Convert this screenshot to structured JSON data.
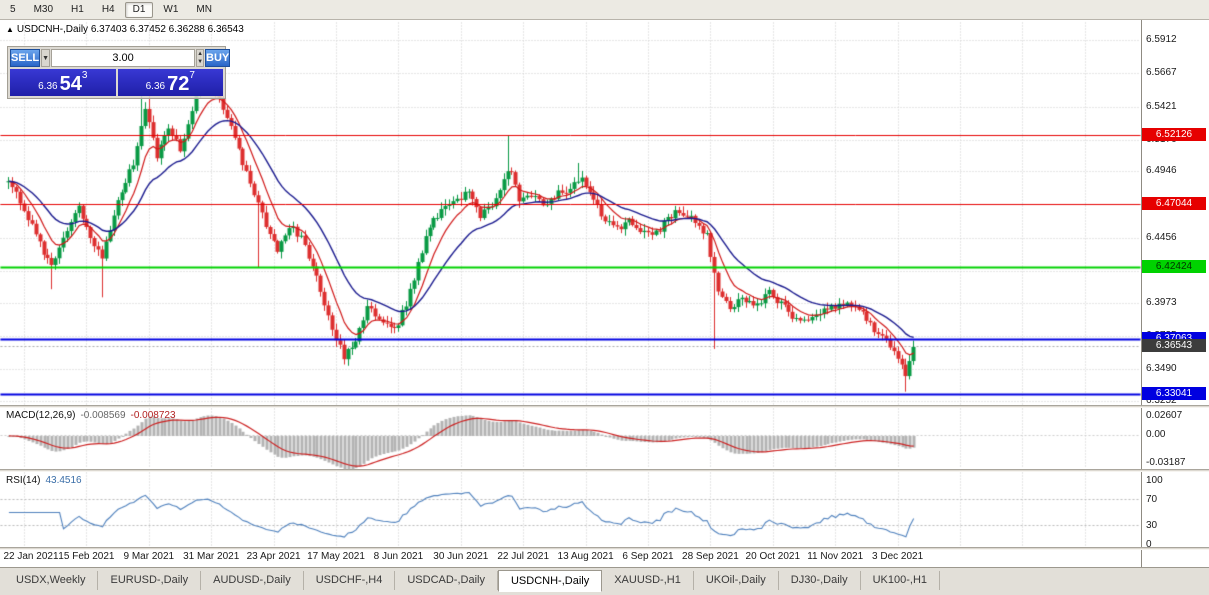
{
  "toolbar": {
    "timeframes": [
      {
        "label": "5",
        "active": false
      },
      {
        "label": "M30",
        "active": false
      },
      {
        "label": "H1",
        "active": false
      },
      {
        "label": "H4",
        "active": false
      },
      {
        "label": "D1",
        "active": true
      },
      {
        "label": "W1",
        "active": false
      },
      {
        "label": "MN",
        "active": false
      }
    ]
  },
  "chart": {
    "header_arrow": "▲",
    "header_symbol": "USDCNH-,Daily",
    "header_ohlc": "6.37403 6.37452 6.36288 6.36543"
  },
  "trade_panel": {
    "sell_label": "SELL",
    "buy_label": "BUY",
    "volume": "3.00",
    "dropdown_icon": "▼",
    "spin_up_icon": "▲",
    "spin_down_icon": "▼",
    "sell_prefix": "6.36",
    "sell_big": "54",
    "sell_sup": "3",
    "buy_prefix": "6.36",
    "buy_big": "72",
    "buy_sup": "7"
  },
  "colors": {
    "up": "#089a44",
    "down": "#dd2f2f",
    "grid": "#cdcdcd",
    "ma_fast": "#d01818",
    "ma_slow": "#1b1b8f",
    "macd_hist": "#b4b4b4",
    "macd_signal": "#cc2222",
    "rsi_line": "#4f81bd",
    "bid_line": "#aaaaaa",
    "axis_text": "#1a1a1a"
  },
  "y_axis": {
    "ticks": [
      "6.5912",
      "6.5667",
      "6.5421",
      "6.5176",
      "6.4946",
      "6.4701",
      "6.4456",
      "6.4211",
      "6.3973",
      "6.3735",
      "6.3490",
      "6.3252"
    ]
  },
  "price_lines": [
    {
      "label": "6.52126",
      "price": 6.52126,
      "color": "#e60000",
      "fg": "#ffffff",
      "width": 1
    },
    {
      "label": "6.47044",
      "price": 6.47044,
      "color": "#e60000",
      "fg": "#ffffff",
      "width": 1
    },
    {
      "label": "6.42424",
      "price": 6.42424,
      "color": "#00d200",
      "fg": "#003300",
      "width": 2
    },
    {
      "label": "6.37063",
      "price": 6.37063,
      "color": "#0000e0",
      "fg": "#ffffff",
      "width": 2
    },
    {
      "label": "6.33041",
      "price": 6.33041,
      "color": "#0000e0",
      "fg": "#ffffff",
      "width": 2
    }
  ],
  "current_price": {
    "label": "6.36543",
    "price": 6.36543,
    "bg": "#3c3c3c",
    "fg": "#ffffff"
  },
  "macd_panel": {
    "name": "MACD(12,26,9)",
    "value1": "-0.008569",
    "value2": "-0.008723",
    "axis_top": "0.02607",
    "axis_mid": "0.00",
    "axis_bottom": "-0.03187"
  },
  "rsi_panel": {
    "name": "RSI(14)",
    "value": "43.4516",
    "axis": [
      "100",
      "70",
      "30",
      "0"
    ]
  },
  "chart_data": {
    "type": "candlestick",
    "symbol": "USDCNH-",
    "timeframe": "Daily",
    "ohlc": {
      "open": 6.37403,
      "high": 6.37452,
      "low": 6.36288,
      "close": 6.36543
    },
    "y_range": [
      6.3237,
      6.6045
    ],
    "candle_count": 233,
    "x_labels": [
      "22 Jan 2021",
      "15 Feb 2021",
      "9 Mar 2021",
      "31 Mar 2021",
      "23 Apr 2021",
      "17 May 2021",
      "8 Jun 2021",
      "30 Jun 2021",
      "22 Jul 2021",
      "13 Aug 2021",
      "6 Sep 2021",
      "28 Sep 2021",
      "20 Oct 2021",
      "11 Nov 2021",
      "3 Dec 2021"
    ],
    "close_anchors": [
      [
        0,
        6.487
      ],
      [
        4,
        6.468
      ],
      [
        8,
        6.441
      ],
      [
        11,
        6.424
      ],
      [
        14,
        6.447
      ],
      [
        18,
        6.469
      ],
      [
        21,
        6.446
      ],
      [
        24,
        6.432
      ],
      [
        28,
        6.474
      ],
      [
        32,
        6.501
      ],
      [
        35,
        6.543
      ],
      [
        38,
        6.506
      ],
      [
        41,
        6.527
      ],
      [
        44,
        6.511
      ],
      [
        48,
        6.551
      ],
      [
        51,
        6.562
      ],
      [
        54,
        6.546
      ],
      [
        57,
        6.526
      ],
      [
        60,
        6.501
      ],
      [
        63,
        6.479
      ],
      [
        66,
        6.456
      ],
      [
        69,
        6.438
      ],
      [
        72,
        6.454
      ],
      [
        75,
        6.446
      ],
      [
        78,
        6.426
      ],
      [
        80,
        6.406
      ],
      [
        83,
        6.376
      ],
      [
        86,
        6.359
      ],
      [
        89,
        6.372
      ],
      [
        92,
        6.394
      ],
      [
        95,
        6.388
      ],
      [
        99,
        6.377
      ],
      [
        102,
        6.397
      ],
      [
        105,
        6.427
      ],
      [
        108,
        6.454
      ],
      [
        111,
        6.467
      ],
      [
        114,
        6.471
      ],
      [
        118,
        6.479
      ],
      [
        121,
        6.463
      ],
      [
        124,
        6.471
      ],
      [
        127,
        6.489
      ],
      [
        129,
        6.496
      ],
      [
        131,
        6.473
      ],
      [
        134,
        6.478
      ],
      [
        137,
        6.472
      ],
      [
        141,
        6.478
      ],
      [
        144,
        6.482
      ],
      [
        147,
        6.491
      ],
      [
        150,
        6.473
      ],
      [
        153,
        6.459
      ],
      [
        156,
        6.452
      ],
      [
        159,
        6.461
      ],
      [
        162,
        6.452
      ],
      [
        165,
        6.447
      ],
      [
        168,
        6.456
      ],
      [
        171,
        6.465
      ],
      [
        174,
        6.462
      ],
      [
        177,
        6.455
      ],
      [
        179,
        6.447
      ],
      [
        182,
        6.406
      ],
      [
        185,
        6.394
      ],
      [
        188,
        6.402
      ],
      [
        192,
        6.396
      ],
      [
        195,
        6.405
      ],
      [
        198,
        6.398
      ],
      [
        201,
        6.389
      ],
      [
        204,
        6.386
      ],
      [
        208,
        6.391
      ],
      [
        212,
        6.396
      ],
      [
        216,
        6.398
      ],
      [
        219,
        6.39
      ],
      [
        222,
        6.379
      ],
      [
        225,
        6.372
      ],
      [
        227,
        6.362
      ],
      [
        229,
        6.353
      ],
      [
        230,
        6.346
      ],
      [
        231,
        6.353
      ],
      [
        232,
        6.36543
      ]
    ],
    "wick_events": [
      {
        "i": 11,
        "low": 6.408
      },
      {
        "i": 24,
        "low": 6.402
      },
      {
        "i": 34,
        "high": 6.567
      },
      {
        "i": 36,
        "high": 6.571
      },
      {
        "i": 50,
        "high": 6.57
      },
      {
        "i": 64,
        "low": 6.424
      },
      {
        "i": 86,
        "low": 6.3525
      },
      {
        "i": 128,
        "high": 6.5215
      },
      {
        "i": 146,
        "high": 6.501
      },
      {
        "i": 181,
        "low": 6.364
      },
      {
        "i": 230,
        "low": 6.3325
      }
    ],
    "overlays": [
      {
        "name": "ma-fast",
        "type": "ema",
        "period": 8,
        "color": "#d01818"
      },
      {
        "name": "ma-slow",
        "type": "ema",
        "period": 21,
        "color": "#1b1b8f"
      }
    ],
    "indicators": [
      {
        "name": "MACD",
        "params": [
          12,
          26,
          9
        ],
        "displayed_values": [
          -0.008569,
          -0.008723
        ],
        "range": [
          -0.03187,
          0.02607
        ]
      },
      {
        "name": "RSI",
        "params": [
          14
        ],
        "displayed_value": 43.4516,
        "range": [
          0,
          100
        ],
        "levels": [
          70,
          30
        ]
      }
    ],
    "horizontal_lines": [
      6.52126,
      6.47044,
      6.42424,
      6.37063,
      6.33041
    ]
  },
  "tabs": [
    {
      "label": "USDX,Weekly",
      "active": false
    },
    {
      "label": "EURUSD-,Daily",
      "active": false
    },
    {
      "label": "AUDUSD-,Daily",
      "active": false
    },
    {
      "label": "USDCHF-,H4",
      "active": false
    },
    {
      "label": "USDCAD-,Daily",
      "active": false
    },
    {
      "label": "USDCNH-,Daily",
      "active": true
    },
    {
      "label": "XAUUSD-,H1",
      "active": false
    },
    {
      "label": "UKOil-,Daily",
      "active": false
    },
    {
      "label": "DJ30-,Daily",
      "active": false
    },
    {
      "label": "UK100-,H1",
      "active": false
    }
  ]
}
